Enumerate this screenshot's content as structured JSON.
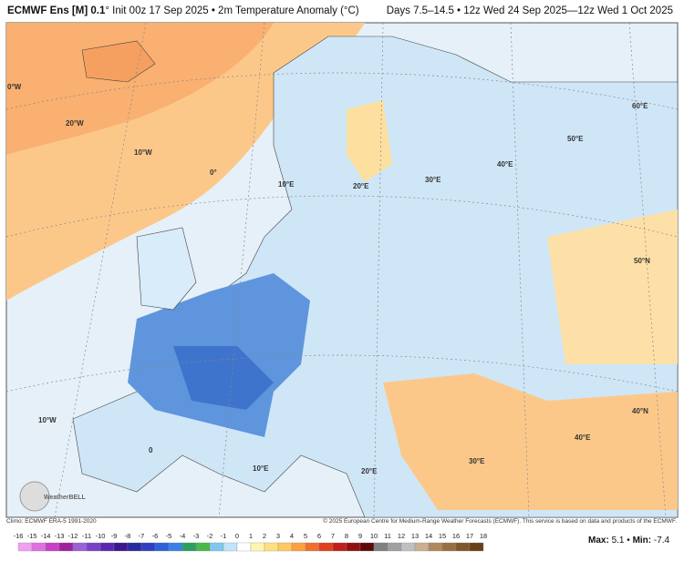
{
  "header": {
    "title_bold": "ECMWF Ens [M] 0.1",
    "title_rest": "° Init 00z 17 Sep 2025 • 2m Temperature Anomaly (°C)",
    "right": "Days 7.5–14.5 • 12z Wed 24 Sep 2025—12z Wed 1 Oct 2025"
  },
  "map_labels": [
    "0°W",
    "20°W",
    "10°W",
    "0°",
    "10°E",
    "20°E",
    "30°E",
    "40°E",
    "50°E",
    "60°E",
    "50°N",
    "10°W",
    "0",
    "10°E",
    "20°E",
    "30°E",
    "40°E",
    "40°N"
  ],
  "logo": "WeatherBELL",
  "footer": {
    "climo": "Climo: ECMWF ERA-5 1991-2020",
    "copyright": "© 2025 European Centre for Medium-Range Weather Forecasts (ECMWF). This service is based on data and products of the ECMWF."
  },
  "colorbar": {
    "labels": [
      -16,
      -15,
      -14,
      -13,
      -12,
      -11,
      -10,
      -9,
      -8,
      -7,
      -6,
      -5,
      -4,
      -3,
      -2,
      -1,
      0,
      1,
      2,
      3,
      4,
      5,
      6,
      7,
      8,
      9,
      10,
      11,
      12,
      13,
      14,
      15,
      16,
      17,
      18
    ],
    "colors": [
      "#f0a0f0",
      "#e070e0",
      "#c840c8",
      "#a020a0",
      "#9a60d8",
      "#7a40c8",
      "#5a28b0",
      "#3a1890",
      "#2828a0",
      "#3040c0",
      "#3060d8",
      "#3880e8",
      "#2aa060",
      "#4ab848",
      "#80c8f0",
      "#c0e4fa",
      "#ffffff",
      "#fff4b0",
      "#ffe080",
      "#ffc860",
      "#ffa040",
      "#f07030",
      "#e04020",
      "#c02018",
      "#901010",
      "#600808",
      "#808080",
      "#a0a0a0",
      "#c0c0c0",
      "#c8b090",
      "#b08860",
      "#987040",
      "#805828",
      "#684018"
    ]
  },
  "stats": {
    "max_label": "Max:",
    "max": 5.1,
    "sep": "•",
    "min_label": "Min:",
    "min": -7.4
  }
}
